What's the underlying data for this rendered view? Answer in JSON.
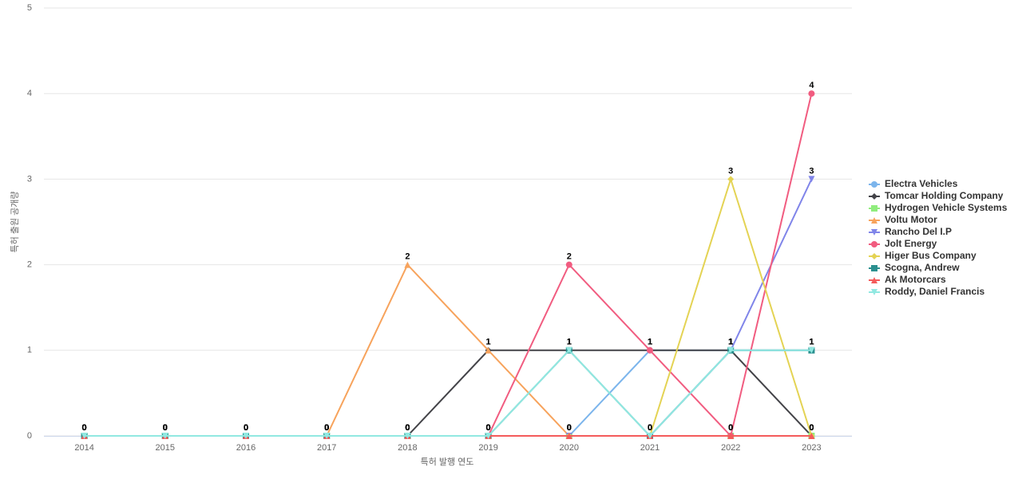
{
  "chart_data": {
    "type": "line",
    "x_label": "특허 발행 연도",
    "y_label": "특허 출원 공개량",
    "categories": [
      "2014",
      "2015",
      "2016",
      "2017",
      "2018",
      "2019",
      "2020",
      "2021",
      "2022",
      "2023"
    ],
    "ylim": [
      0,
      5
    ],
    "yticks": [
      0,
      1,
      2,
      3,
      4,
      5
    ],
    "grid": true,
    "legend": "right",
    "series": [
      {
        "name": "Electra Vehicles",
        "color": "#7cb5ec",
        "marker": "circle",
        "values": [
          0,
          0,
          0,
          0,
          0,
          0,
          0,
          1,
          1,
          1
        ]
      },
      {
        "name": "Tomcar Holding Company",
        "color": "#434348",
        "marker": "diamond",
        "values": [
          0,
          0,
          0,
          0,
          0,
          1,
          1,
          1,
          1,
          0
        ]
      },
      {
        "name": "Hydrogen Vehicle Systems",
        "color": "#90ed7d",
        "marker": "square",
        "values": [
          0,
          0,
          0,
          0,
          0,
          0,
          0,
          0,
          0,
          0
        ]
      },
      {
        "name": "Voltu Motor",
        "color": "#f7a35c",
        "marker": "triangle",
        "values": [
          0,
          0,
          0,
          0,
          2,
          1,
          0,
          0,
          0,
          0
        ]
      },
      {
        "name": "Rancho Del I.P",
        "color": "#8085e9",
        "marker": "triangle-down",
        "values": [
          0,
          0,
          0,
          0,
          0,
          0,
          0,
          0,
          1,
          3
        ]
      },
      {
        "name": "Jolt Energy",
        "color": "#f15c80",
        "marker": "circle",
        "values": [
          0,
          0,
          0,
          0,
          0,
          0,
          2,
          1,
          0,
          4
        ]
      },
      {
        "name": "Higer Bus Company",
        "color": "#e4d354",
        "marker": "diamond",
        "values": [
          0,
          0,
          0,
          0,
          0,
          0,
          0,
          0,
          3,
          0
        ]
      },
      {
        "name": "Scogna, Andrew",
        "color": "#2b908f",
        "marker": "square",
        "values": [
          0,
          0,
          0,
          0,
          0,
          0,
          1,
          0,
          1,
          1
        ]
      },
      {
        "name": "Ak Motorcars",
        "color": "#f45b5b",
        "marker": "triangle",
        "values": [
          0,
          0,
          0,
          0,
          0,
          0,
          0,
          0,
          0,
          0
        ]
      },
      {
        "name": "Roddy, Daniel Francis",
        "color": "#91e8e1",
        "marker": "triangle-down",
        "values": [
          0,
          0,
          0,
          0,
          0,
          0,
          1,
          0,
          1,
          1
        ]
      }
    ]
  }
}
